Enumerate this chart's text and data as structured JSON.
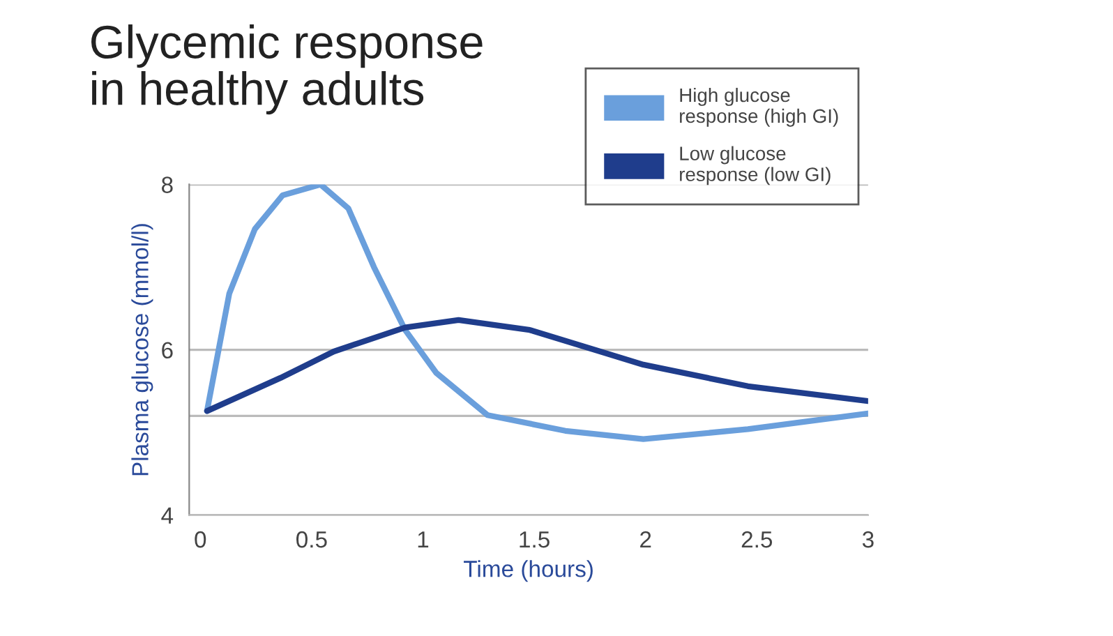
{
  "chart_data": {
    "type": "line",
    "title": "Glycemic response\nin healthy adults",
    "xlabel": "Time (hours)",
    "ylabel": "Plasma glucose (mmol/l)",
    "xlim": [
      -0.05,
      3.0
    ],
    "xticks": [
      0,
      0.5,
      1,
      1.5,
      2,
      2.5,
      3
    ],
    "ylim": [
      4,
      8
    ],
    "yticks": [
      4,
      {
        "value": 5.2,
        "label": null
      },
      6,
      8
    ],
    "grid": "y",
    "legend": "top right",
    "line_style": "solid",
    "marker": "none",
    "series": [
      {
        "name": "High glucose\nresponse (high GI)",
        "color": "#6a9fdc",
        "x": [
          0.03,
          0.13,
          0.245,
          0.37,
          0.54,
          0.665,
          0.78,
          0.92,
          1.06,
          1.29,
          1.64,
          1.99,
          2.46,
          3.0
        ],
        "values": [
          5.26,
          6.68,
          7.46,
          7.87,
          8.0,
          7.71,
          7.0,
          6.24,
          5.72,
          5.21,
          5.02,
          4.92,
          5.04,
          5.23
        ]
      },
      {
        "name": "Low glucose\nresponse (low GI)",
        "color": "#1f3d8c",
        "x": [
          0.03,
          0.36,
          0.6,
          0.92,
          1.16,
          1.48,
          1.99,
          2.46,
          3.0
        ],
        "values": [
          5.26,
          5.66,
          5.98,
          6.27,
          6.36,
          6.24,
          5.82,
          5.56,
          5.38
        ]
      }
    ]
  }
}
